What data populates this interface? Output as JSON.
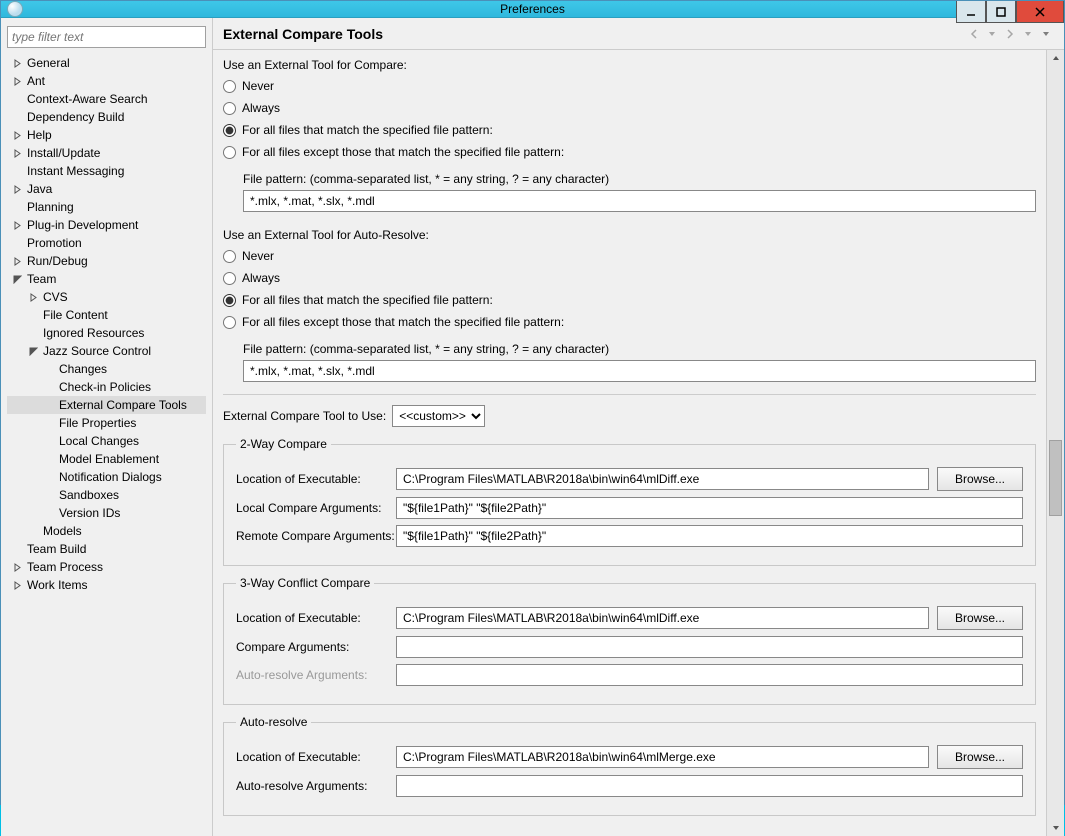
{
  "window": {
    "title": "Preferences"
  },
  "sidebar": {
    "filter_placeholder": "type filter text",
    "items": [
      {
        "label": "General",
        "depth": 0,
        "expandable": true,
        "expanded": false
      },
      {
        "label": "Ant",
        "depth": 0,
        "expandable": true,
        "expanded": false
      },
      {
        "label": "Context-Aware Search",
        "depth": 0,
        "expandable": false
      },
      {
        "label": "Dependency Build",
        "depth": 0,
        "expandable": false
      },
      {
        "label": "Help",
        "depth": 0,
        "expandable": true,
        "expanded": false
      },
      {
        "label": "Install/Update",
        "depth": 0,
        "expandable": true,
        "expanded": false
      },
      {
        "label": "Instant Messaging",
        "depth": 0,
        "expandable": false
      },
      {
        "label": "Java",
        "depth": 0,
        "expandable": true,
        "expanded": false
      },
      {
        "label": "Planning",
        "depth": 0,
        "expandable": false
      },
      {
        "label": "Plug-in Development",
        "depth": 0,
        "expandable": true,
        "expanded": false
      },
      {
        "label": "Promotion",
        "depth": 0,
        "expandable": false
      },
      {
        "label": "Run/Debug",
        "depth": 0,
        "expandable": true,
        "expanded": false
      },
      {
        "label": "Team",
        "depth": 0,
        "expandable": true,
        "expanded": true
      },
      {
        "label": "CVS",
        "depth": 1,
        "expandable": true,
        "expanded": false
      },
      {
        "label": "File Content",
        "depth": 1,
        "expandable": false
      },
      {
        "label": "Ignored Resources",
        "depth": 1,
        "expandable": false
      },
      {
        "label": "Jazz Source Control",
        "depth": 1,
        "expandable": true,
        "expanded": true
      },
      {
        "label": "Changes",
        "depth": 2,
        "expandable": false
      },
      {
        "label": "Check-in Policies",
        "depth": 2,
        "expandable": false
      },
      {
        "label": "External Compare Tools",
        "depth": 2,
        "expandable": false,
        "selected": true
      },
      {
        "label": "File Properties",
        "depth": 2,
        "expandable": false
      },
      {
        "label": "Local Changes",
        "depth": 2,
        "expandable": false
      },
      {
        "label": "Model Enablement",
        "depth": 2,
        "expandable": false
      },
      {
        "label": "Notification Dialogs",
        "depth": 2,
        "expandable": false
      },
      {
        "label": "Sandboxes",
        "depth": 2,
        "expandable": false
      },
      {
        "label": "Version IDs",
        "depth": 2,
        "expandable": false
      },
      {
        "label": "Models",
        "depth": 1,
        "expandable": false
      },
      {
        "label": "Team Build",
        "depth": 0,
        "expandable": false
      },
      {
        "label": "Team Process",
        "depth": 0,
        "expandable": true,
        "expanded": false
      },
      {
        "label": "Work Items",
        "depth": 0,
        "expandable": true,
        "expanded": false
      }
    ]
  },
  "page": {
    "title": "External Compare Tools",
    "compareGroup": {
      "heading": "Use an External Tool for Compare:",
      "options": [
        "Never",
        "Always",
        "For all files that match the specified file pattern:",
        "For all files except those that match the specified file pattern:"
      ],
      "selectedIndex": 2,
      "patternLabel": "File pattern: (comma-separated list, * = any string, ? = any character)",
      "patternValue": "*.mlx, *.mat, *.slx, *.mdl"
    },
    "autoGroup": {
      "heading": "Use an External Tool for Auto-Resolve:",
      "options": [
        "Never",
        "Always",
        "For all files that match the specified file pattern:",
        "For all files except those that match the specified file pattern:"
      ],
      "selectedIndex": 2,
      "patternLabel": "File pattern: (comma-separated list, * = any string, ? = any character)",
      "patternValue": "*.mlx, *.mat, *.slx, *.mdl"
    },
    "toolSelect": {
      "label": "External Compare Tool to Use:",
      "value": "<<custom>>"
    },
    "twoWay": {
      "legend": "2-Way Compare",
      "execLabel": "Location of Executable:",
      "execValue": "C:\\Program Files\\MATLAB\\R2018a\\bin\\win64\\mlDiff.exe",
      "browse": "Browse...",
      "localArgsLabel": "Local Compare Arguments:",
      "localArgsValue": "\"${file1Path}\" \"${file2Path}\"",
      "remoteArgsLabel": "Remote Compare Arguments:",
      "remoteArgsValue": "\"${file1Path}\" \"${file2Path}\""
    },
    "threeWay": {
      "legend": "3-Way Conflict Compare",
      "execLabel": "Location of Executable:",
      "execValue": "C:\\Program Files\\MATLAB\\R2018a\\bin\\win64\\mlDiff.exe",
      "browse": "Browse...",
      "cmpArgsLabel": "Compare Arguments:",
      "cmpArgsValue": "",
      "autoArgsLabel": "Auto-resolve Arguments:",
      "autoArgsValue": ""
    },
    "autoResolve": {
      "legend": "Auto-resolve",
      "execLabel": "Location of Executable:",
      "execValue": "C:\\Program Files\\MATLAB\\R2018a\\bin\\win64\\mlMerge.exe",
      "browse": "Browse...",
      "argsLabel": "Auto-resolve Arguments:",
      "argsValue": ""
    }
  }
}
